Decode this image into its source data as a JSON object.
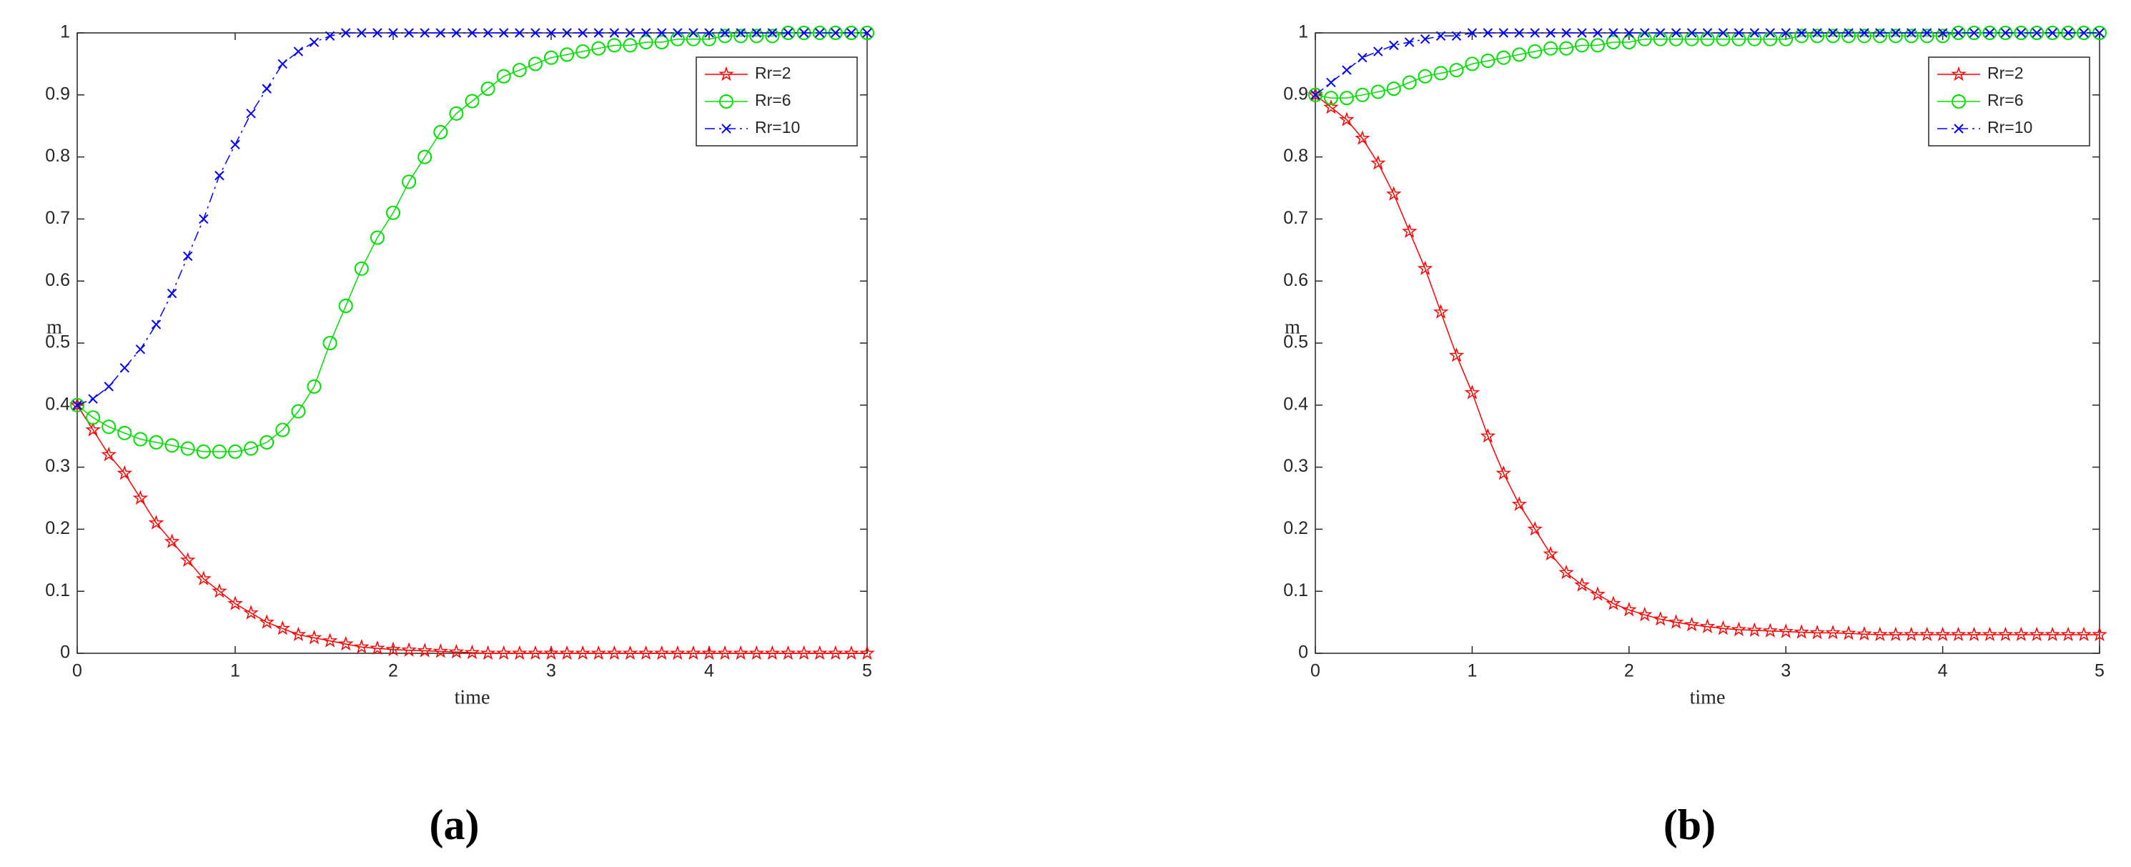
{
  "chart_data": [
    {
      "type": "line",
      "caption": "(a)",
      "xlabel": "time",
      "ylabel": "m",
      "xlim": [
        0,
        5
      ],
      "ylim": [
        0,
        1
      ],
      "xticks": [
        0,
        1,
        2,
        3,
        4,
        5
      ],
      "yticks": [
        0,
        0.1,
        0.2,
        0.3,
        0.4,
        0.5,
        0.6,
        0.7,
        0.8,
        0.9,
        1
      ],
      "legend": "upper right",
      "x": [
        0,
        0.1,
        0.2,
        0.3,
        0.4,
        0.5,
        0.6,
        0.7,
        0.8,
        0.9,
        1,
        1.1,
        1.2,
        1.3,
        1.4,
        1.5,
        1.6,
        1.7,
        1.8,
        1.9,
        2,
        2.1,
        2.2,
        2.3,
        2.4,
        2.5,
        2.6,
        2.7,
        2.8,
        2.9,
        3,
        3.1,
        3.2,
        3.3,
        3.4,
        3.5,
        3.6,
        3.7,
        3.8,
        3.9,
        4,
        4.1,
        4.2,
        4.3,
        4.4,
        4.5,
        4.6,
        4.7,
        4.8,
        4.9,
        5
      ],
      "series": [
        {
          "name": "Rr=2",
          "color": "#ff0000",
          "marker": "star",
          "linestyle": "solid",
          "values": [
            0.4,
            0.36,
            0.32,
            0.29,
            0.25,
            0.21,
            0.18,
            0.15,
            0.12,
            0.1,
            0.08,
            0.065,
            0.05,
            0.04,
            0.03,
            0.025,
            0.02,
            0.015,
            0.01,
            0.008,
            0.006,
            0.005,
            0.004,
            0.003,
            0.002,
            0.001,
            0,
            0,
            0,
            0,
            0,
            0,
            0,
            0,
            0,
            0,
            0,
            0,
            0,
            0,
            0,
            0,
            0,
            0,
            0,
            0,
            0,
            0,
            0,
            0,
            0
          ]
        },
        {
          "name": "Rr=6",
          "color": "#00e000",
          "marker": "circle",
          "linestyle": "solid",
          "values": [
            0.4,
            0.38,
            0.365,
            0.355,
            0.345,
            0.34,
            0.335,
            0.33,
            0.325,
            0.325,
            0.325,
            0.33,
            0.34,
            0.36,
            0.39,
            0.43,
            0.5,
            0.56,
            0.62,
            0.67,
            0.71,
            0.76,
            0.8,
            0.84,
            0.87,
            0.89,
            0.91,
            0.93,
            0.94,
            0.95,
            0.96,
            0.965,
            0.97,
            0.975,
            0.98,
            0.98,
            0.985,
            0.985,
            0.99,
            0.99,
            0.99,
            0.995,
            0.995,
            0.995,
            0.995,
            1,
            1,
            1,
            1,
            1,
            1
          ]
        },
        {
          "name": "Rr=10",
          "color": "#0000ff",
          "marker": "x",
          "linestyle": "dashdot",
          "values": [
            0.4,
            0.41,
            0.43,
            0.46,
            0.49,
            0.53,
            0.58,
            0.64,
            0.7,
            0.77,
            0.82,
            0.87,
            0.91,
            0.95,
            0.97,
            0.985,
            0.995,
            1,
            1,
            1,
            1,
            1,
            1,
            1,
            1,
            1,
            1,
            1,
            1,
            1,
            1,
            1,
            1,
            1,
            1,
            1,
            1,
            1,
            1,
            1,
            1,
            1,
            1,
            1,
            1,
            1,
            1,
            1,
            1,
            1,
            1
          ]
        }
      ]
    },
    {
      "type": "line",
      "caption": "(b)",
      "xlabel": "time",
      "ylabel": "m",
      "xlim": [
        0,
        5
      ],
      "ylim": [
        0,
        1
      ],
      "xticks": [
        0,
        1,
        2,
        3,
        4,
        5
      ],
      "yticks": [
        0,
        0.1,
        0.2,
        0.3,
        0.4,
        0.5,
        0.6,
        0.7,
        0.8,
        0.9,
        1
      ],
      "legend": "upper right",
      "x": [
        0,
        0.1,
        0.2,
        0.3,
        0.4,
        0.5,
        0.6,
        0.7,
        0.8,
        0.9,
        1,
        1.1,
        1.2,
        1.3,
        1.4,
        1.5,
        1.6,
        1.7,
        1.8,
        1.9,
        2,
        2.1,
        2.2,
        2.3,
        2.4,
        2.5,
        2.6,
        2.7,
        2.8,
        2.9,
        3,
        3.1,
        3.2,
        3.3,
        3.4,
        3.5,
        3.6,
        3.7,
        3.8,
        3.9,
        4,
        4.1,
        4.2,
        4.3,
        4.4,
        4.5,
        4.6,
        4.7,
        4.8,
        4.9,
        5
      ],
      "series": [
        {
          "name": "Rr=2",
          "color": "#ff0000",
          "marker": "star",
          "linestyle": "solid",
          "values": [
            0.9,
            0.88,
            0.86,
            0.83,
            0.79,
            0.74,
            0.68,
            0.62,
            0.55,
            0.48,
            0.42,
            0.35,
            0.29,
            0.24,
            0.2,
            0.16,
            0.13,
            0.11,
            0.095,
            0.08,
            0.07,
            0.062,
            0.055,
            0.05,
            0.046,
            0.043,
            0.04,
            0.038,
            0.037,
            0.036,
            0.035,
            0.034,
            0.033,
            0.033,
            0.032,
            0.031,
            0.03,
            0.03,
            0.03,
            0.03,
            0.03,
            0.03,
            0.03,
            0.03,
            0.03,
            0.03,
            0.03,
            0.03,
            0.03,
            0.03,
            0.03
          ]
        },
        {
          "name": "Rr=6",
          "color": "#00e000",
          "marker": "circle",
          "linestyle": "solid",
          "values": [
            0.9,
            0.895,
            0.895,
            0.9,
            0.905,
            0.91,
            0.92,
            0.93,
            0.935,
            0.94,
            0.95,
            0.955,
            0.96,
            0.965,
            0.97,
            0.975,
            0.975,
            0.98,
            0.98,
            0.985,
            0.985,
            0.99,
            0.99,
            0.99,
            0.99,
            0.99,
            0.99,
            0.99,
            0.99,
            0.99,
            0.99,
            0.995,
            0.995,
            0.995,
            0.995,
            0.995,
            0.995,
            0.995,
            0.995,
            0.995,
            0.995,
            1,
            1,
            1,
            1,
            1,
            1,
            1,
            1,
            1,
            1
          ]
        },
        {
          "name": "Rr=10",
          "color": "#0000ff",
          "marker": "x",
          "linestyle": "dashdot",
          "values": [
            0.9,
            0.92,
            0.94,
            0.96,
            0.97,
            0.98,
            0.985,
            0.99,
            0.995,
            0.995,
            1,
            1,
            1,
            1,
            1,
            1,
            1,
            1,
            1,
            1,
            1,
            1,
            1,
            1,
            1,
            1,
            1,
            1,
            1,
            1,
            1,
            1,
            1,
            1,
            1,
            1,
            1,
            1,
            1,
            1,
            1,
            1,
            1,
            1,
            1,
            1,
            1,
            1,
            1,
            1,
            1
          ]
        }
      ]
    }
  ]
}
